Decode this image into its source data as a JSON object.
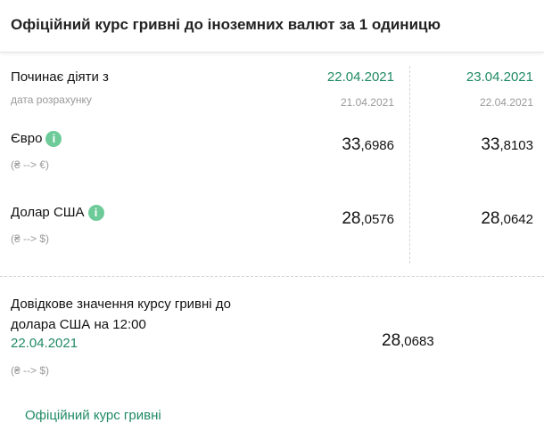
{
  "header": {
    "title": "Офіційний курс гривні до іноземних валют за 1 одиницю"
  },
  "table": {
    "start_label": "Починає діяти з",
    "calc_label": "дата розрахунку",
    "columns": [
      {
        "date": "22.04.2021",
        "calc_date": "21.04.2021"
      },
      {
        "date": "23.04.2021",
        "calc_date": "22.04.2021"
      }
    ],
    "rows": [
      {
        "name": "Євро",
        "direction": "(₴ --> €)",
        "rates": [
          {
            "int": "33",
            "frac": ",6986"
          },
          {
            "int": "33",
            "frac": ",8103"
          }
        ]
      },
      {
        "name": "Долар США",
        "direction": "(₴ --> $)",
        "rates": [
          {
            "int": "28",
            "frac": ",0576"
          },
          {
            "int": "28",
            "frac": ",0642"
          }
        ]
      }
    ],
    "info_icon": "info-icon"
  },
  "reference": {
    "title_line1": "Довідкове значення курсу гривні до",
    "title_line2": "долара США на 12:00",
    "date": "22.04.2021",
    "direction": "(₴ --> $)",
    "rate_int": "28",
    "rate_frac": ",0683"
  },
  "footer_link": "Офіційний курс гривні",
  "colors": {
    "accent": "#1f8a63",
    "info": "#6dcb9a"
  }
}
